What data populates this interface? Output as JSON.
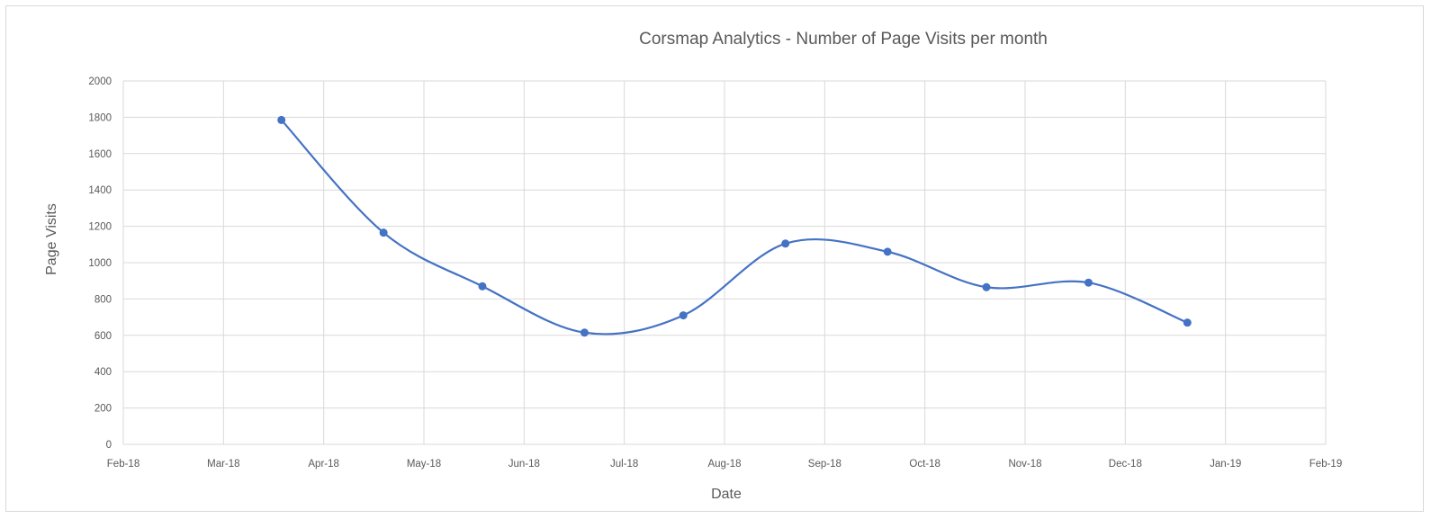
{
  "chart_data": {
    "type": "line",
    "title": "Corsmap Analytics - Number of Page Visits per month",
    "xlabel": "Date",
    "ylabel": "Page Visits",
    "x_ticks": [
      "Feb-18",
      "Mar-18",
      "Apr-18",
      "May-18",
      "Jun-18",
      "Jul-18",
      "Aug-18",
      "Sep-18",
      "Oct-18",
      "Nov-18",
      "Dec-18",
      "Jan-19",
      "Feb-19"
    ],
    "y_ticks": [
      0,
      200,
      400,
      600,
      800,
      1000,
      1200,
      1400,
      1600,
      1800,
      2000
    ],
    "ylim": [
      0,
      2000
    ],
    "xlim": [
      "2018-02-01",
      "2019-02-01"
    ],
    "grid": true,
    "smooth": true,
    "series": [
      {
        "color": "#4472c4",
        "points": [
          {
            "x": "2018-03-21",
            "y": 1785
          },
          {
            "x": "2018-04-21",
            "y": 1165
          },
          {
            "x": "2018-05-21",
            "y": 870
          },
          {
            "x": "2018-06-21",
            "y": 615
          },
          {
            "x": "2018-07-21",
            "y": 710
          },
          {
            "x": "2018-08-21",
            "y": 1105
          },
          {
            "x": "2018-09-21",
            "y": 1060
          },
          {
            "x": "2018-10-21",
            "y": 865
          },
          {
            "x": "2018-11-21",
            "y": 890
          },
          {
            "x": "2018-12-21",
            "y": 670
          }
        ]
      }
    ]
  }
}
